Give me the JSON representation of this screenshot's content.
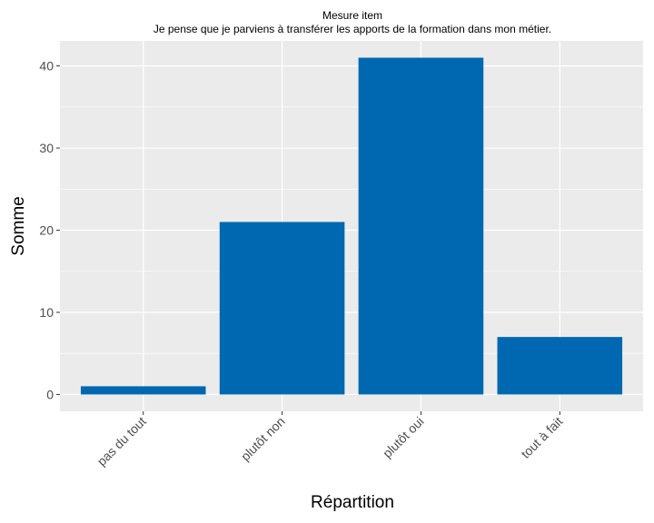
{
  "chart_data": {
    "type": "bar",
    "title": "Mesure item",
    "subtitle": "Je pense que je parviens à transférer les apports de la formation dans mon métier.",
    "xlabel": "Répartition",
    "ylabel": "Somme",
    "categories": [
      "pas du tout",
      "plutôt non",
      "plutôt oui",
      "tout à fait"
    ],
    "values": [
      1,
      21,
      41,
      7
    ],
    "ylim": [
      -2.05,
      43.05
    ],
    "yticks": [
      0,
      10,
      20,
      30,
      40
    ],
    "ytick_labels": [
      "0",
      "10",
      "20",
      "30",
      "40"
    ],
    "grid": true,
    "legend": "none",
    "colors": {
      "bar": "#0068B0",
      "panel": "#EBEBEB",
      "grid_major": "#FFFFFF",
      "tick_text": "#4D4D4D"
    }
  }
}
